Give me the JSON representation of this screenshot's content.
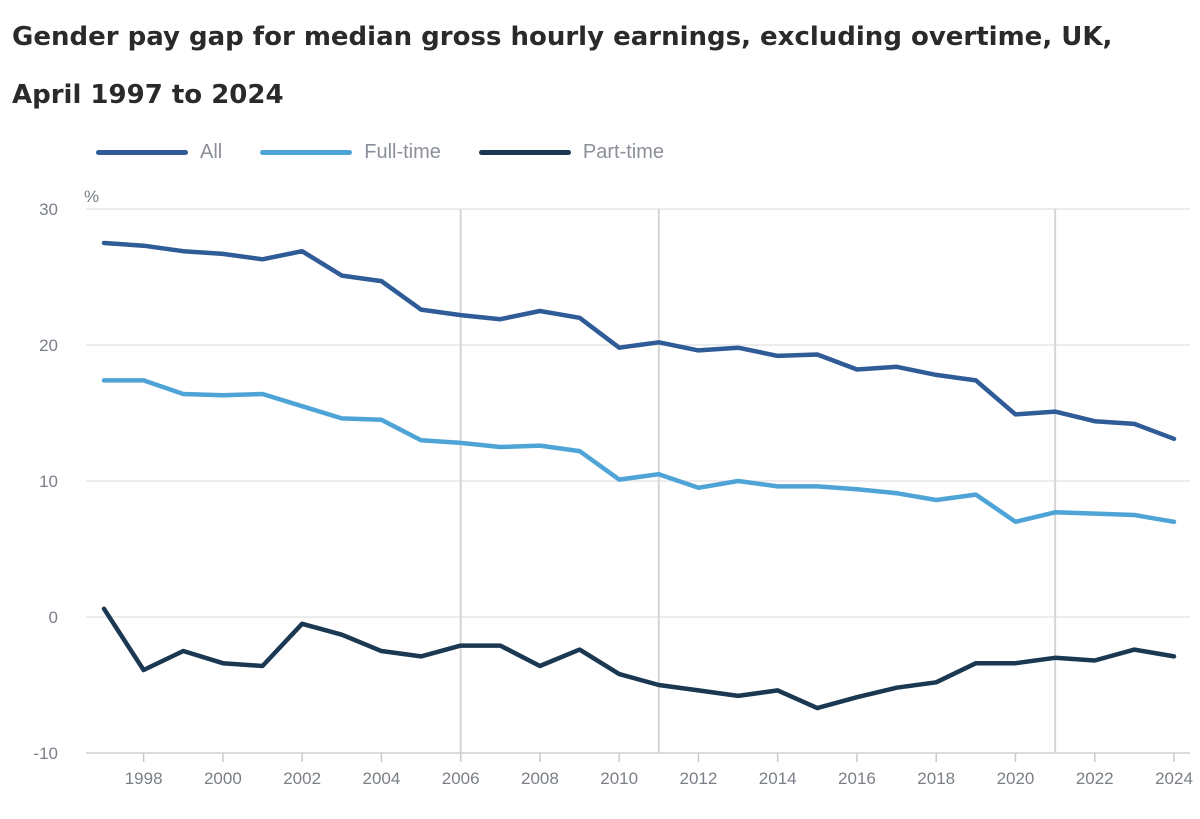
{
  "title": "Gender pay gap for median gross hourly earnings, excluding overtime, UK, April 1997 to 2024",
  "colors": {
    "all": "#2f5b97",
    "full_time": "#4ea3d7",
    "part_time": "#1a3852",
    "grid": "#e6e6e6",
    "vertical_marker": "#d5d5d5",
    "axis_text": "#7a7f87"
  },
  "chart_data": {
    "type": "line",
    "title": "Gender pay gap for median gross hourly earnings, excluding overtime, UK, April 1997 to 2024",
    "ylabel": "%",
    "xlabel": "",
    "ylim": [
      -10,
      30
    ],
    "xlim": [
      1997,
      2024
    ],
    "yticks": [
      -10,
      0,
      10,
      20,
      30
    ],
    "xticks": [
      1998,
      2000,
      2002,
      2004,
      2006,
      2008,
      2010,
      2012,
      2014,
      2016,
      2018,
      2020,
      2022,
      2024
    ],
    "grid": "horizontal",
    "vertical_markers": [
      2006,
      2011,
      2021
    ],
    "legend_position": "top-left",
    "x": [
      1997,
      1998,
      1999,
      2000,
      2001,
      2002,
      2003,
      2004,
      2005,
      2006,
      2007,
      2008,
      2009,
      2010,
      2011,
      2012,
      2013,
      2014,
      2015,
      2016,
      2017,
      2018,
      2019,
      2020,
      2021,
      2022,
      2023,
      2024
    ],
    "series": [
      {
        "name": "All",
        "key": "all",
        "values": [
          27.5,
          27.3,
          26.9,
          26.7,
          26.3,
          26.9,
          25.1,
          24.7,
          22.6,
          22.2,
          21.9,
          22.5,
          22.0,
          19.8,
          20.2,
          19.6,
          19.8,
          19.2,
          19.3,
          18.2,
          18.4,
          17.8,
          17.4,
          14.9,
          15.1,
          14.4,
          14.2,
          13.1
        ]
      },
      {
        "name": "Full-time",
        "key": "full_time",
        "values": [
          17.4,
          17.4,
          16.4,
          16.3,
          16.4,
          15.5,
          14.6,
          14.5,
          13.0,
          12.8,
          12.5,
          12.6,
          12.2,
          10.1,
          10.5,
          9.5,
          10.0,
          9.6,
          9.6,
          9.4,
          9.1,
          8.6,
          9.0,
          7.0,
          7.7,
          7.6,
          7.5,
          7.0
        ]
      },
      {
        "name": "Part-time",
        "key": "part_time",
        "values": [
          0.6,
          -3.9,
          -2.5,
          -3.4,
          -3.6,
          -0.5,
          -1.3,
          -2.5,
          -2.9,
          -2.1,
          -2.1,
          -3.6,
          -2.4,
          -4.2,
          -5.0,
          -5.4,
          -5.8,
          -5.4,
          -6.7,
          -5.9,
          -5.2,
          -4.8,
          -3.4,
          -3.4,
          -3.0,
          -3.2,
          -2.4,
          -2.9
        ]
      }
    ]
  }
}
